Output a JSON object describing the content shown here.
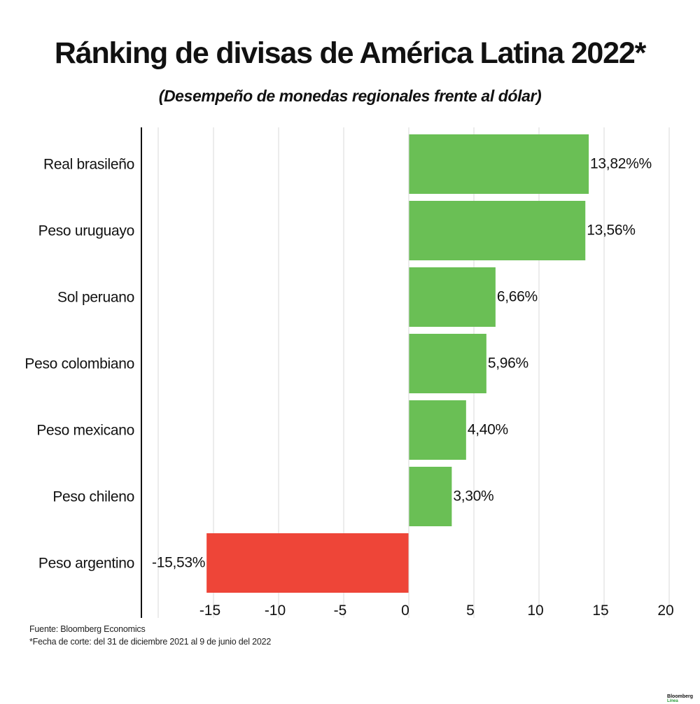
{
  "header": {
    "title": "Ránking de divisas de América Latina 2022*",
    "subtitle": "(Desempeño de monedas regionales frente al dólar)"
  },
  "footer": {
    "source": "Fuente: Bloomberg Economics",
    "note": "*Fecha de corte: del 31 de diciembre 2021 al 9 de junio del 2022",
    "brand": "Bloomberg",
    "brand_sub": "Línea"
  },
  "colors": {
    "positive": "#6abf55",
    "negative": "#ee4538",
    "grid": "#d9d9d9",
    "axis": "#111111"
  },
  "chart_data": {
    "type": "bar",
    "orientation": "horizontal",
    "title": "Ránking de divisas de América Latina 2022*",
    "subtitle": "(Desempeño de monedas regionales frente al dólar)",
    "categories": [
      "Real brasileño",
      "Peso uruguayo",
      "Sol peruano",
      "Peso colombiano",
      "Peso mexicano",
      "Peso chileno",
      "Peso argentino"
    ],
    "values": [
      13.82,
      13.56,
      6.66,
      5.96,
      4.4,
      3.3,
      -15.53
    ],
    "value_labels": [
      "13,82%%",
      "13,56%",
      "6,66%",
      "5,96%",
      "4,40%",
      "3,30%",
      "-15,53%"
    ],
    "xlim": [
      -20,
      20
    ],
    "xticks": [
      -15,
      -10,
      -5,
      0,
      5,
      10,
      15,
      20
    ],
    "xtick_labels": [
      "-15",
      "-10",
      "-5",
      "0",
      "5",
      "10",
      "15",
      "20"
    ],
    "grid": true,
    "xlabel": "",
    "ylabel": ""
  }
}
